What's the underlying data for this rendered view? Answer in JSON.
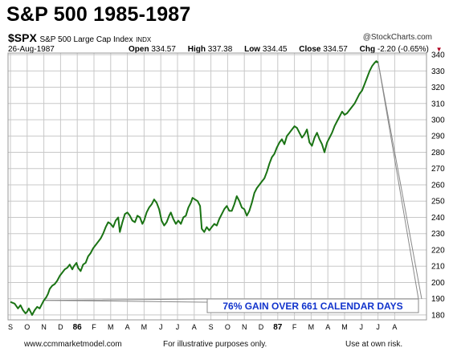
{
  "header": {
    "title": "S&P 500 1985-1987",
    "symbol": "$SPX",
    "index_name": "S&P 500 Large Cap Index",
    "index_type": "INDX",
    "brand": "@StockCharts.com",
    "date": "26-Aug-1987",
    "open_label": "Open",
    "open_value": "334.57",
    "high_label": "High",
    "high_value": "337.38",
    "low_label": "Low",
    "low_value": "334.45",
    "close_label": "Close",
    "close_value": "334.57",
    "chg_label": "Chg",
    "chg_value": "-2.20 (-0.65%)"
  },
  "footer": {
    "website": "www.ccmmarketmodel.com",
    "disclaimer_1": "For illustrative purposes only.",
    "disclaimer_2": "Use at own risk."
  },
  "colors": {
    "line": "#1a7314",
    "grid": "#c8c8c8",
    "annotation_text": "#1133cc",
    "callout": "#888888"
  },
  "chart_data": {
    "type": "line",
    "x_unit": "months since Sep 1985",
    "x_ticks": [
      "S",
      "O",
      "N",
      "D",
      "86",
      "F",
      "M",
      "A",
      "M",
      "J",
      "J",
      "A",
      "S",
      "O",
      "N",
      "D",
      "87",
      "F",
      "M",
      "A",
      "M",
      "J",
      "J",
      "A"
    ],
    "x_ticks_bold": [
      false,
      false,
      false,
      false,
      true,
      false,
      false,
      false,
      false,
      false,
      false,
      false,
      false,
      false,
      false,
      false,
      true,
      false,
      false,
      false,
      false,
      false,
      false,
      false
    ],
    "y_ticks": [
      180,
      190,
      200,
      210,
      220,
      230,
      240,
      250,
      260,
      270,
      280,
      290,
      300,
      310,
      320,
      330,
      340
    ],
    "ylim": [
      177,
      341
    ],
    "grid": true,
    "series": [
      {
        "points": [
          [
            0.0,
            188
          ],
          [
            0.25,
            187
          ],
          [
            0.45,
            184
          ],
          [
            0.6,
            186
          ],
          [
            0.75,
            183
          ],
          [
            0.9,
            181
          ],
          [
            1.0,
            182
          ],
          [
            1.1,
            184
          ],
          [
            1.2,
            182
          ],
          [
            1.3,
            180
          ],
          [
            1.45,
            183
          ],
          [
            1.6,
            185
          ],
          [
            1.75,
            184
          ],
          [
            1.9,
            187
          ],
          [
            2.0,
            189
          ],
          [
            2.15,
            191
          ],
          [
            2.25,
            193
          ],
          [
            2.35,
            196
          ],
          [
            2.5,
            198
          ],
          [
            2.65,
            199
          ],
          [
            2.8,
            201
          ],
          [
            2.95,
            204
          ],
          [
            3.1,
            206
          ],
          [
            3.25,
            208
          ],
          [
            3.4,
            209
          ],
          [
            3.55,
            211
          ],
          [
            3.7,
            208
          ],
          [
            3.8,
            210
          ],
          [
            3.95,
            212
          ],
          [
            4.05,
            209
          ],
          [
            4.2,
            207
          ],
          [
            4.35,
            211
          ],
          [
            4.5,
            212
          ],
          [
            4.65,
            216
          ],
          [
            4.8,
            218
          ],
          [
            4.95,
            221
          ],
          [
            5.1,
            223
          ],
          [
            5.25,
            225
          ],
          [
            5.4,
            227
          ],
          [
            5.55,
            230
          ],
          [
            5.7,
            234
          ],
          [
            5.85,
            237
          ],
          [
            6.0,
            236
          ],
          [
            6.15,
            234
          ],
          [
            6.3,
            238
          ],
          [
            6.45,
            240
          ],
          [
            6.55,
            231
          ],
          [
            6.7,
            237
          ],
          [
            6.85,
            242
          ],
          [
            7.0,
            243
          ],
          [
            7.15,
            241
          ],
          [
            7.3,
            238
          ],
          [
            7.45,
            237
          ],
          [
            7.6,
            241
          ],
          [
            7.75,
            240
          ],
          [
            7.9,
            236
          ],
          [
            8.0,
            238
          ],
          [
            8.15,
            243
          ],
          [
            8.3,
            246
          ],
          [
            8.45,
            248
          ],
          [
            8.6,
            251
          ],
          [
            8.75,
            249
          ],
          [
            8.9,
            245
          ],
          [
            9.05,
            238
          ],
          [
            9.2,
            235
          ],
          [
            9.35,
            237
          ],
          [
            9.5,
            241
          ],
          [
            9.6,
            243
          ],
          [
            9.75,
            239
          ],
          [
            9.9,
            236
          ],
          [
            10.05,
            238
          ],
          [
            10.2,
            236
          ],
          [
            10.35,
            240
          ],
          [
            10.5,
            241
          ],
          [
            10.65,
            246
          ],
          [
            10.8,
            249
          ],
          [
            10.9,
            252
          ],
          [
            11.05,
            251
          ],
          [
            11.2,
            250
          ],
          [
            11.35,
            247
          ],
          [
            11.45,
            233
          ],
          [
            11.6,
            231
          ],
          [
            11.75,
            234
          ],
          [
            11.9,
            232
          ],
          [
            12.05,
            234
          ],
          [
            12.2,
            236
          ],
          [
            12.35,
            235
          ],
          [
            12.5,
            239
          ],
          [
            12.65,
            242
          ],
          [
            12.8,
            245
          ],
          [
            12.95,
            247
          ],
          [
            13.1,
            244
          ],
          [
            13.25,
            244
          ],
          [
            13.4,
            248
          ],
          [
            13.55,
            253
          ],
          [
            13.7,
            250
          ],
          [
            13.85,
            246
          ],
          [
            14.0,
            245
          ],
          [
            14.15,
            241
          ],
          [
            14.3,
            244
          ],
          [
            14.45,
            249
          ],
          [
            14.6,
            255
          ],
          [
            14.75,
            258
          ],
          [
            14.9,
            260
          ],
          [
            15.05,
            262
          ],
          [
            15.2,
            264
          ],
          [
            15.35,
            268
          ],
          [
            15.5,
            273
          ],
          [
            15.65,
            277
          ],
          [
            15.8,
            279
          ],
          [
            15.95,
            283
          ],
          [
            16.1,
            286
          ],
          [
            16.25,
            288
          ],
          [
            16.4,
            285
          ],
          [
            16.55,
            290
          ],
          [
            16.7,
            292
          ],
          [
            16.85,
            294
          ],
          [
            17.0,
            296
          ],
          [
            17.15,
            295
          ],
          [
            17.3,
            292
          ],
          [
            17.45,
            289
          ],
          [
            17.6,
            291
          ],
          [
            17.75,
            294
          ],
          [
            17.9,
            286
          ],
          [
            18.05,
            284
          ],
          [
            18.2,
            289
          ],
          [
            18.35,
            292
          ],
          [
            18.5,
            288
          ],
          [
            18.65,
            285
          ],
          [
            18.8,
            280
          ],
          [
            18.95,
            286
          ],
          [
            19.1,
            289
          ],
          [
            19.25,
            292
          ],
          [
            19.4,
            296
          ],
          [
            19.55,
            299
          ],
          [
            19.7,
            302
          ],
          [
            19.85,
            305
          ],
          [
            20.0,
            303
          ],
          [
            20.15,
            304
          ],
          [
            20.3,
            306
          ],
          [
            20.45,
            308
          ],
          [
            20.6,
            310
          ],
          [
            20.75,
            313
          ],
          [
            20.9,
            316
          ],
          [
            21.05,
            318
          ],
          [
            21.2,
            322
          ],
          [
            21.35,
            326
          ],
          [
            21.5,
            330
          ],
          [
            21.65,
            333
          ],
          [
            21.8,
            335
          ],
          [
            21.9,
            336
          ],
          [
            22.0,
            335
          ]
        ]
      }
    ],
    "annotation": {
      "text": "76% GAIN OVER 661 CALENDAR DAYS",
      "from": [
        2.0,
        189
      ],
      "to": [
        22.0,
        336
      ]
    }
  }
}
